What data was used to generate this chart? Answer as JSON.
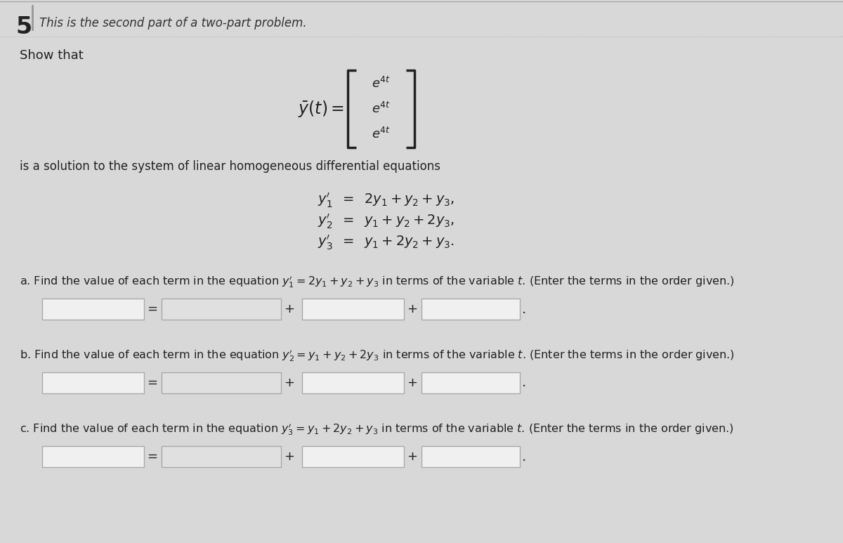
{
  "bg_color": "#d8d8d8",
  "content_bg": "#e8e8e8",
  "problem_number": "5",
  "header_text": "This is the second part of a two-part problem.",
  "show_that_text": "Show that",
  "solution_text": "is a solution to the system of linear homogeneous differential equations",
  "eq1": "$y_1'\\;\\;=\\;\\;2y_1 + y_2 + y_3,$",
  "eq2": "$y_2'\\;\\;=\\;\\;y_1 + y_2 + 2y_3,$",
  "eq3": "$y_3'\\;\\;=\\;\\;y_1 + 2y_2 + y_3.$",
  "part_a_text": "a. Find the value of each term in the equation $y_1' = 2y_1 + y_2 + y_3$ in terms of the variable $t$. (Enter the terms in the order given.)",
  "part_b_text": "b. Find the value of each term in the equation $y_2' = y_1 + y_2 + 2y_3$ in terms of the variable $t$. (Enter the terms in the order given.)",
  "part_c_text": "c. Find the value of each term in the equation $y_3' = y_1 + 2y_2 + y_3$ in terms of the variable $t$. (Enter the terms in the order given.)",
  "box_face": "#f0f0f0",
  "box_face2": "#e0e0e0",
  "box_edge": "#aaaaaa",
  "text_color": "#222222",
  "header_color": "#333333",
  "divider_color": "#999999"
}
